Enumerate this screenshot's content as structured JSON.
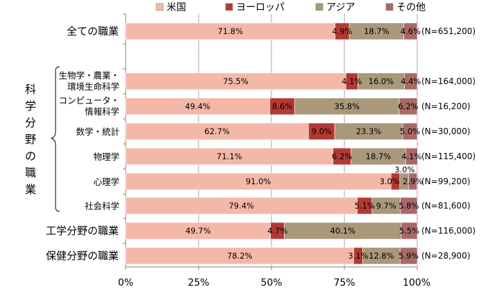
{
  "chart_data": {
    "type": "bar",
    "orientation": "horizontal",
    "stacked": true,
    "percent": true,
    "xlim": [
      0,
      100
    ],
    "x_ticks": [
      "0%",
      "25%",
      "50%",
      "75%",
      "100%"
    ],
    "grid": "vertical",
    "legend_position": "top",
    "series": [
      {
        "name": "米国",
        "color": "#f4b8a8"
      },
      {
        "name": "ヨーロッパ",
        "color": "#b33a33"
      },
      {
        "name": "アジア",
        "color": "#a9987a"
      },
      {
        "name": "その他",
        "color": "#a96a66"
      }
    ],
    "group_label": "科学分野の職業",
    "group_label_chars": [
      "科",
      "学",
      "分",
      "野",
      "の",
      "職",
      "業"
    ],
    "rows": [
      {
        "label": [
          "全ての職業"
        ],
        "big": true,
        "values": [
          71.8,
          4.9,
          18.7,
          4.6
        ],
        "labels": [
          "71.8%",
          "4.9%",
          "18.7%",
          "4.6%"
        ],
        "n": "(N=651,200)"
      },
      {
        "label": [
          "生物学・農業・",
          "環境生命科学"
        ],
        "big": false,
        "values": [
          75.5,
          4.1,
          16.0,
          4.4
        ],
        "labels": [
          "75.5%",
          "4.1%",
          "16.0%",
          "4.4%"
        ],
        "n": "(N=164,000)"
      },
      {
        "label": [
          "コンピュータ・",
          "情報科学"
        ],
        "big": false,
        "values": [
          49.4,
          8.6,
          35.8,
          6.2
        ],
        "labels": [
          "49.4%",
          "8.6%",
          "35.8%",
          "6.2%"
        ],
        "n": "(N=16,200)"
      },
      {
        "label": [
          "数学・統計"
        ],
        "big": false,
        "values": [
          62.7,
          9.0,
          23.3,
          5.0
        ],
        "labels": [
          "62.7%",
          "9.0%",
          "23.3%",
          "5.0%"
        ],
        "n": "(N=30,000)"
      },
      {
        "label": [
          "物理学"
        ],
        "big": false,
        "values": [
          71.1,
          6.2,
          18.7,
          4.1
        ],
        "labels": [
          "71.1%",
          "6.2%",
          "18.7%",
          "4.1%"
        ],
        "n": "(N=115,400)"
      },
      {
        "label": [
          "心理学"
        ],
        "big": false,
        "values": [
          91.0,
          3.0,
          3.0,
          2.9
        ],
        "labels": [
          "91.0%",
          "3.0%",
          "3.0%",
          "2.9%"
        ],
        "n": "(N=99,200)"
      },
      {
        "label": [
          "社会科学"
        ],
        "big": false,
        "values": [
          79.4,
          5.1,
          9.7,
          5.8
        ],
        "labels": [
          "79.4%",
          "5.1%",
          "9.7%",
          "5.8%"
        ],
        "n": "(N=81,600)"
      },
      {
        "label": [
          "工学分野の職業"
        ],
        "big": true,
        "values": [
          49.7,
          4.7,
          40.1,
          5.5
        ],
        "labels": [
          "49.7%",
          "4.7%",
          "40.1%",
          "5.5%"
        ],
        "n": "(N=116,000)"
      },
      {
        "label": [
          "保健分野の職業"
        ],
        "big": true,
        "values": [
          78.2,
          3.1,
          12.8,
          5.9
        ],
        "labels": [
          "78.2%",
          "3.1%",
          "12.8%",
          "5.9%"
        ],
        "n": "(N=28,900)"
      }
    ]
  }
}
